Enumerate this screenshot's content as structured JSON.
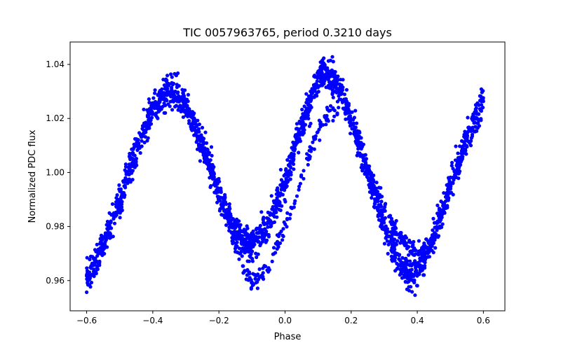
{
  "chart_data": {
    "type": "scatter",
    "title": "TIC 0057963765, period 0.3210 days",
    "xlabel": "Phase",
    "ylabel": "Normalized PDC flux",
    "xlim": [
      -0.65,
      0.665
    ],
    "ylim": [
      0.9488,
      1.0483
    ],
    "x_ticks": [
      -0.6,
      -0.4,
      -0.2,
      0.0,
      0.2,
      0.4,
      0.6
    ],
    "x_tick_labels": [
      "−0.6",
      "−0.4",
      "−0.2",
      "0.0",
      "0.2",
      "0.4",
      "0.6"
    ],
    "y_ticks": [
      0.96,
      0.98,
      1.0,
      1.02,
      1.04
    ],
    "y_tick_labels": [
      "0.96",
      "0.98",
      "1.00",
      "1.02",
      "1.04"
    ],
    "grid": false,
    "legend": "none",
    "marker_color": "#0000ff",
    "series": [
      {
        "phase_range": [
          -0.6,
          0.6
        ],
        "x": [
          -0.6,
          -0.55,
          -0.5,
          -0.45,
          -0.4,
          -0.35,
          -0.3,
          -0.25,
          -0.2,
          -0.15,
          -0.12,
          -0.1,
          -0.05,
          0.0,
          0.05,
          0.1,
          0.12,
          0.15,
          0.2,
          0.25,
          0.3,
          0.35,
          0.38,
          0.4,
          0.45,
          0.5,
          0.55,
          0.6
        ],
        "y": [
          0.962,
          0.973,
          0.99,
          1.008,
          1.024,
          1.031,
          1.025,
          1.01,
          0.992,
          0.978,
          0.974,
          0.973,
          0.981,
          0.997,
          1.018,
          1.034,
          1.037,
          1.034,
          1.02,
          1.0,
          0.979,
          0.965,
          0.961,
          0.963,
          0.976,
          0.995,
          1.012,
          1.027
        ]
      },
      {
        "phase_range": [
          -0.17,
          0.16
        ],
        "x": [
          -0.17,
          -0.15,
          -0.12,
          -0.1,
          -0.08,
          -0.05,
          -0.02,
          0.0,
          0.03,
          0.06,
          0.09,
          0.12,
          0.14,
          0.16
        ],
        "y": [
          0.979,
          0.972,
          0.963,
          0.96,
          0.961,
          0.966,
          0.974,
          0.98,
          0.99,
          1.002,
          1.012,
          1.02,
          1.022,
          1.021
        ]
      },
      {
        "phase_range": [
          0.25,
          0.42
        ],
        "x": [
          0.25,
          0.28,
          0.3,
          0.33,
          0.35,
          0.38,
          0.4,
          0.42
        ],
        "y": [
          1.002,
          0.993,
          0.987,
          0.98,
          0.976,
          0.972,
          0.971,
          0.972
        ]
      }
    ]
  }
}
